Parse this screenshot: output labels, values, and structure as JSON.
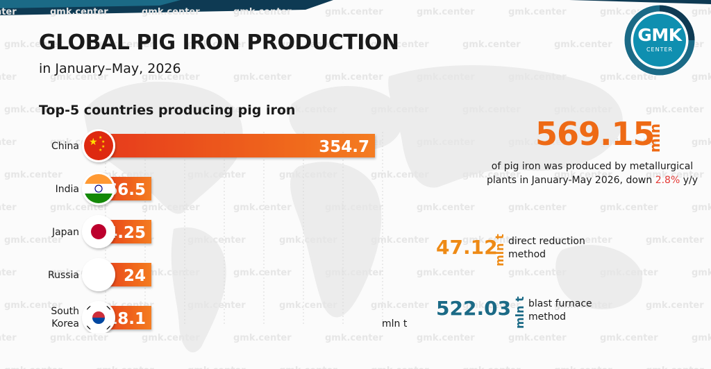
{
  "title": "GLOBAL PIG IRON PRODUCTION",
  "subtitle": "in January–May, 2026",
  "section_title": "Top-5 countries producing pig iron",
  "logo": {
    "line1": "GMK",
    "line2": "CENTER"
  },
  "watermark": "gmk.center",
  "summary": {
    "total_value": "569.15",
    "total_unit": "mln t",
    "description_before": "of pig iron was produced by metallurgical plants in January-May 2026, down ",
    "description_pct": "2.8%",
    "description_after": " y/y"
  },
  "methods": [
    {
      "value": "47.12",
      "unit": "mln t",
      "label_line1": "direct reduction",
      "label_line2": "method"
    },
    {
      "value": "522.03",
      "unit": "mln t",
      "label_line1": "blast furnace",
      "label_line2": "method"
    }
  ],
  "colors": {
    "bar_start": "#e63a1c",
    "bar_end": "#f47c20",
    "accent_orange": "#ee6a15",
    "accent_blue": "#1b6a86",
    "logo_blue": "#0f8fb0"
  },
  "chart_data": {
    "type": "bar",
    "orientation": "horizontal",
    "title": "Top-5 countries producing pig iron",
    "xlabel": "mln t",
    "categories": [
      "China",
      "India",
      "Japan",
      "Russia",
      "South Korea"
    ],
    "category_lines": [
      [
        "China"
      ],
      [
        "India"
      ],
      [
        "Japan"
      ],
      [
        "Russia"
      ],
      [
        "South",
        "Korea"
      ]
    ],
    "flags": [
      "china-flag",
      "india-flag",
      "japan-flag",
      "russia-flag",
      "south-korea-flag"
    ],
    "values": [
      354.7,
      66.5,
      24.25,
      24,
      18.1
    ],
    "value_labels": [
      "354.7",
      "66.5",
      "24.25",
      "24",
      "18.1"
    ],
    "grid": true
  }
}
